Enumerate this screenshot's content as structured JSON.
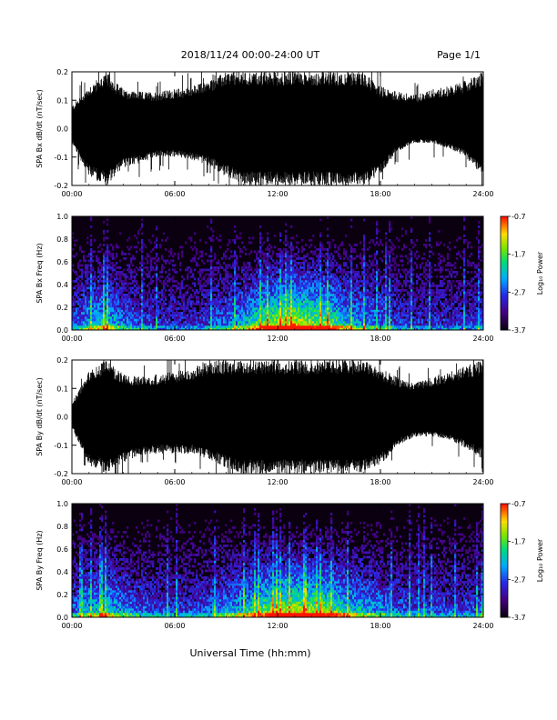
{
  "header": {
    "title": "2018/11/24  00:00-24:00 UT",
    "page": "Page 1/1"
  },
  "xlabel": "Universal Time (hh:mm)",
  "chart_data": [
    {
      "type": "line",
      "ylabel": "SPA Bx dB/dt (nT/sec)",
      "xlim": [
        0,
        24
      ],
      "ylim": [
        -0.2,
        0.2
      ],
      "xticks": [
        "00:00",
        "06:00",
        "12:00",
        "18:00",
        "24:00"
      ],
      "yticks": [
        "-0.2",
        "-0.1",
        "0.0",
        "0.1",
        "0.2"
      ],
      "envelope": {
        "hours": [
          0,
          1,
          2,
          3,
          4,
          5,
          6,
          7,
          8,
          9,
          10,
          11,
          12,
          13,
          14,
          15,
          16,
          17,
          18,
          19,
          20,
          21,
          22,
          23,
          24
        ],
        "upper": [
          0.08,
          0.15,
          0.2,
          0.14,
          0.13,
          0.13,
          0.14,
          0.15,
          0.17,
          0.2,
          0.2,
          0.2,
          0.2,
          0.2,
          0.2,
          0.2,
          0.2,
          0.2,
          0.15,
          0.13,
          0.12,
          0.14,
          0.15,
          0.17,
          0.2
        ],
        "lower": [
          -0.05,
          -0.17,
          -0.2,
          -0.14,
          -0.12,
          -0.1,
          -0.1,
          -0.11,
          -0.13,
          -0.17,
          -0.2,
          -0.2,
          -0.2,
          -0.2,
          -0.2,
          -0.2,
          -0.2,
          -0.2,
          -0.16,
          -0.08,
          -0.05,
          -0.05,
          -0.07,
          -0.1,
          -0.18
        ]
      }
    },
    {
      "type": "heatmap",
      "ylabel": "SPA Bx Freq (Hz)",
      "xlim": [
        0,
        24
      ],
      "ylim": [
        0,
        1.0
      ],
      "xticks": [
        "00:00",
        "06:00",
        "12:00",
        "18:00",
        "24:00"
      ],
      "yticks": [
        "0.0",
        "0.2",
        "0.4",
        "0.6",
        "0.8",
        "1.0"
      ],
      "colorbar": {
        "label": "Log₁₀ Power",
        "ticks": [
          "-0.7",
          "-1.7",
          "-2.7",
          "-3.7"
        ],
        "range": [
          -3.7,
          -0.7
        ]
      },
      "activity": {
        "hours": [
          0,
          1,
          2,
          3,
          4,
          5,
          6,
          7,
          8,
          9,
          10,
          11,
          12,
          13,
          14,
          15,
          16,
          17,
          18,
          19,
          20,
          21,
          22,
          23,
          24
        ],
        "level": [
          0.35,
          0.55,
          0.65,
          0.45,
          0.35,
          0.3,
          0.3,
          0.3,
          0.35,
          0.45,
          0.55,
          0.75,
          0.85,
          0.95,
          0.85,
          0.8,
          0.6,
          0.5,
          0.45,
          0.35,
          0.3,
          0.3,
          0.3,
          0.3,
          0.35
        ]
      }
    },
    {
      "type": "line",
      "ylabel": "SPA By dB/dt (nT/sec)",
      "xlim": [
        0,
        24
      ],
      "ylim": [
        -0.2,
        0.2
      ],
      "xticks": [
        "00:00",
        "06:00",
        "12:00",
        "18:00",
        "24:00"
      ],
      "yticks": [
        "-0.2",
        "-0.1",
        "0.0",
        "0.1",
        "0.2"
      ],
      "envelope": {
        "hours": [
          0,
          1,
          2,
          3,
          4,
          5,
          6,
          7,
          8,
          9,
          10,
          11,
          12,
          13,
          14,
          15,
          16,
          17,
          18,
          19,
          20,
          21,
          22,
          23,
          24
        ],
        "upper": [
          0.05,
          0.16,
          0.2,
          0.15,
          0.14,
          0.15,
          0.16,
          0.17,
          0.2,
          0.2,
          0.2,
          0.2,
          0.2,
          0.2,
          0.2,
          0.2,
          0.2,
          0.2,
          0.17,
          0.14,
          0.12,
          0.14,
          0.16,
          0.18,
          0.2
        ],
        "lower": [
          -0.04,
          -0.17,
          -0.2,
          -0.16,
          -0.14,
          -0.13,
          -0.13,
          -0.13,
          -0.15,
          -0.18,
          -0.2,
          -0.2,
          -0.2,
          -0.2,
          -0.2,
          -0.2,
          -0.2,
          -0.2,
          -0.17,
          -0.1,
          -0.07,
          -0.07,
          -0.08,
          -0.11,
          -0.15
        ]
      }
    },
    {
      "type": "heatmap",
      "ylabel": "SPA By Freq (Hz)",
      "xlim": [
        0,
        24
      ],
      "ylim": [
        0,
        1.0
      ],
      "xticks": [
        "00:00",
        "06:00",
        "12:00",
        "18:00",
        "24:00"
      ],
      "yticks": [
        "0.0",
        "0.2",
        "0.4",
        "0.6",
        "0.8",
        "1.0"
      ],
      "colorbar": {
        "label": "Log₁₀ Power",
        "ticks": [
          "-0.7",
          "-1.7",
          "-2.7",
          "-3.7"
        ],
        "range": [
          -3.7,
          -0.7
        ]
      },
      "activity": {
        "hours": [
          0,
          1,
          2,
          3,
          4,
          5,
          6,
          7,
          8,
          9,
          10,
          11,
          12,
          13,
          14,
          15,
          16,
          17,
          18,
          19,
          20,
          21,
          22,
          23,
          24
        ],
        "level": [
          0.4,
          0.55,
          0.65,
          0.5,
          0.4,
          0.35,
          0.35,
          0.35,
          0.4,
          0.5,
          0.6,
          0.75,
          0.85,
          0.9,
          0.85,
          0.8,
          0.65,
          0.55,
          0.5,
          0.4,
          0.35,
          0.35,
          0.35,
          0.35,
          0.4
        ]
      }
    }
  ]
}
